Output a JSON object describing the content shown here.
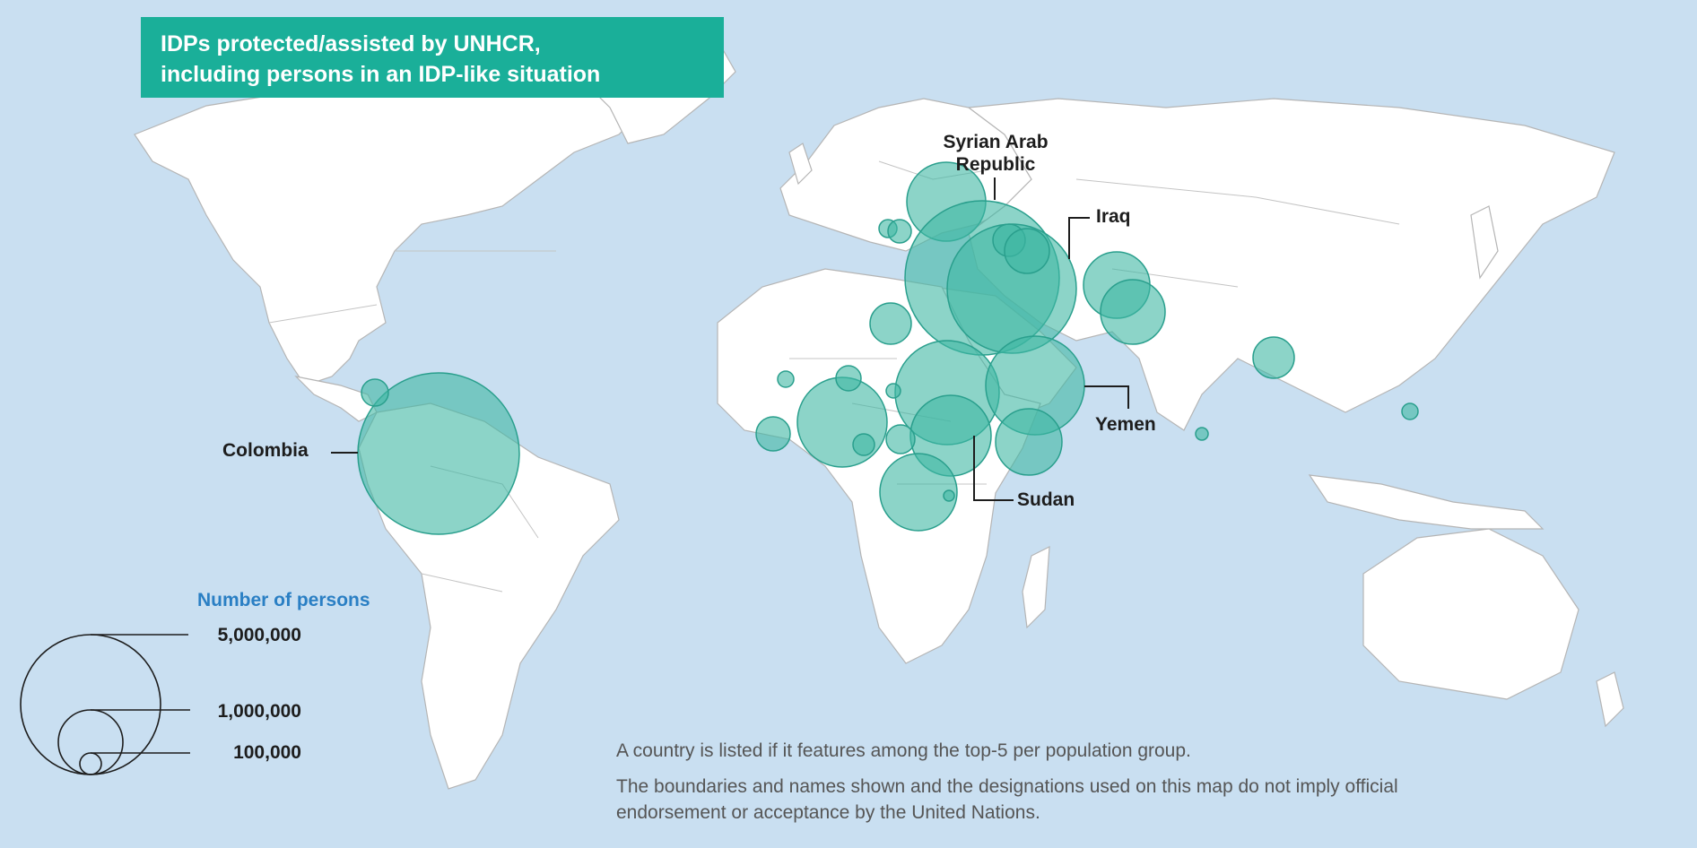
{
  "title": {
    "line1": "IDPs protected/assisted by UNHCR,",
    "line2": "including persons in an IDP-like situation"
  },
  "colors": {
    "ocean": "#c9dff1",
    "land": "#ffffff",
    "border": "#b5b5b5",
    "title_bg": "#1aaf99",
    "bubble_fill": "#3fb8a3",
    "bubble_stroke": "#2a9f8d",
    "legend_title": "#2a7fc4"
  },
  "labels": {
    "syria_line1": "Syrian Arab",
    "syria_line2": "Republic",
    "iraq": "Iraq",
    "yemen": "Yemen",
    "sudan": "Sudan",
    "colombia": "Colombia"
  },
  "legend": {
    "title": "Number of persons",
    "values": [
      "5,000,000",
      "1,000,000",
      "100,000"
    ]
  },
  "notes": {
    "line1": "A country is listed if it features among the top-5 per population group.",
    "line2a": "The boundaries and names shown and the designations used on this map do not imply official",
    "line2b": "endorsement or acceptance by the United Nations."
  }
}
